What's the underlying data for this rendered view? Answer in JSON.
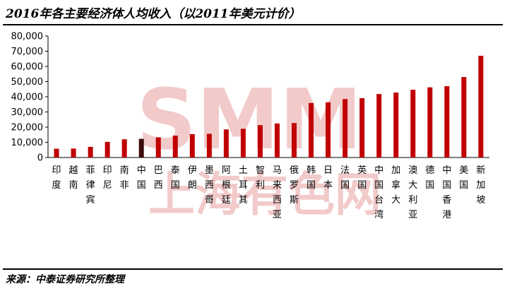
{
  "title": "2016年各主要经济体人均收入（以2011年美元计价）",
  "source": "来源：中泰证券研究所整理",
  "watermark": {
    "logo": "SMM",
    "text": "上海有色网"
  },
  "colors": {
    "bar": "#c00000",
    "highlight": "#3d0b0b",
    "axis": "#000000"
  },
  "chart_data": {
    "type": "bar",
    "title": "2016年各主要经济体人均收入（以2011年美元计价）",
    "xlabel": "",
    "ylabel": "",
    "ylim": [
      0,
      80000
    ],
    "yticks": [
      "0",
      "10,000",
      "20,000",
      "30,000",
      "40,000",
      "50,000",
      "60,000",
      "70,000",
      "80,000"
    ],
    "grid": false,
    "legend": "none",
    "highlight_category": "中国",
    "categories": [
      "印度",
      "越南",
      "菲律宾",
      "印尼",
      "南非",
      "中国",
      "巴西",
      "泰国",
      "伊朗",
      "墨西哥",
      "阿根廷",
      "土耳其",
      "智利",
      "马来西亚",
      "俄罗斯",
      "韩国",
      "日本",
      "法国",
      "英国",
      "中国台湾",
      "加拿大",
      "澳大利亚",
      "德国",
      "中国香港",
      "美国",
      "新加坡"
    ],
    "values": [
      5800,
      5900,
      7000,
      10300,
      12000,
      12300,
      13300,
      14400,
      15400,
      15600,
      18500,
      18900,
      21300,
      22400,
      22700,
      35900,
      36400,
      38500,
      39100,
      41800,
      42800,
      44600,
      46200,
      47000,
      53000,
      67000
    ]
  }
}
